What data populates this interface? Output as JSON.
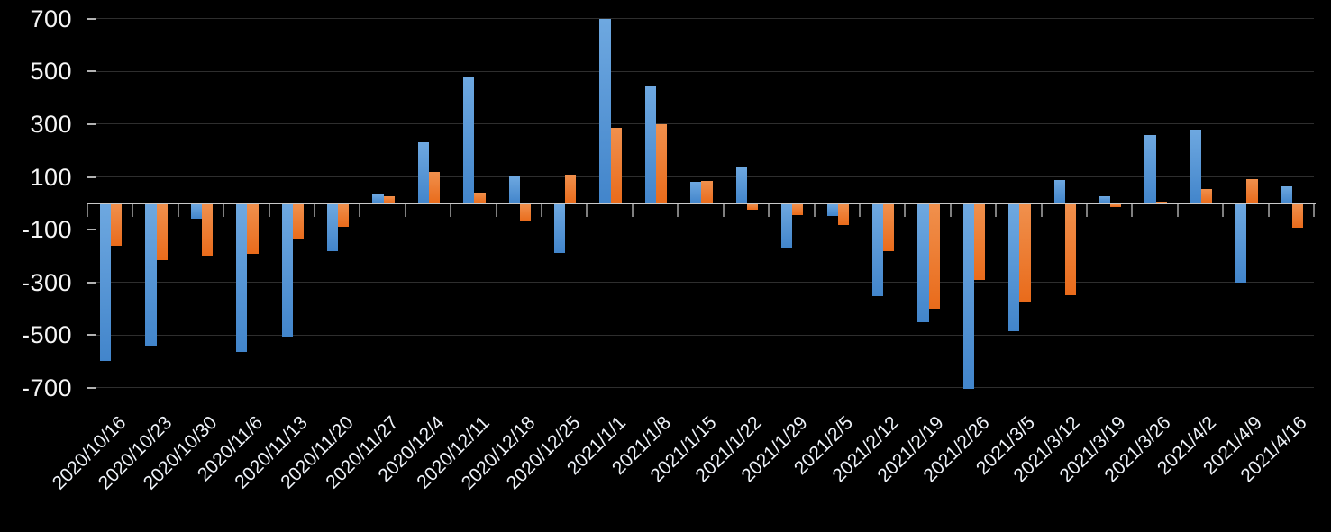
{
  "chart_data": {
    "type": "bar",
    "title": "",
    "categories": [
      "2020/10/16",
      "2020/10/23",
      "2020/10/30",
      "2020/11/6",
      "2020/11/13",
      "2020/11/20",
      "2020/11/27",
      "2020/12/4",
      "2020/12/11",
      "2020/12/18",
      "2020/12/25",
      "2021/1/1",
      "2021/1/8",
      "2021/1/15",
      "2021/1/22",
      "2021/1/29",
      "2021/2/5",
      "2021/2/12",
      "2021/2/19",
      "2021/2/26",
      "2021/3/5",
      "2021/3/12",
      "2021/3/19",
      "2021/3/26",
      "2021/4/2",
      "2021/4/9",
      "2021/4/16"
    ],
    "series": [
      {
        "name": "series-blue",
        "color": "#5499d9",
        "values": [
          -595,
          -537,
          -55,
          -560,
          -503,
          -178,
          32,
          233,
          479,
          103,
          -185,
          700,
          445,
          83,
          140,
          -164,
          -45,
          -349,
          -448,
          -700,
          -482,
          88,
          27,
          260,
          281,
          -298,
          64
        ]
      },
      {
        "name": "series-orange",
        "color": "#ed7a2c",
        "values": [
          -158,
          -212,
          -196,
          -188,
          -134,
          -86,
          28,
          120,
          41,
          -65,
          110,
          285,
          300,
          85,
          -20,
          -42,
          -80,
          -176,
          -395,
          -288,
          -370,
          -345,
          -10,
          6,
          55,
          92,
          -89
        ]
      }
    ],
    "xlabel": "",
    "ylabel": "",
    "ylim": [
      -700,
      700
    ],
    "y_ticks": [
      700,
      500,
      300,
      100,
      -100,
      -300,
      -500,
      -700
    ],
    "grid": true,
    "legend": "none",
    "background_color": "#000000",
    "gridline_color": "#2e2e2e",
    "zero_line_color": "#c9c9c9",
    "axis_tick_color": "#7f7f7f",
    "label_color": "#f5f5f5"
  }
}
